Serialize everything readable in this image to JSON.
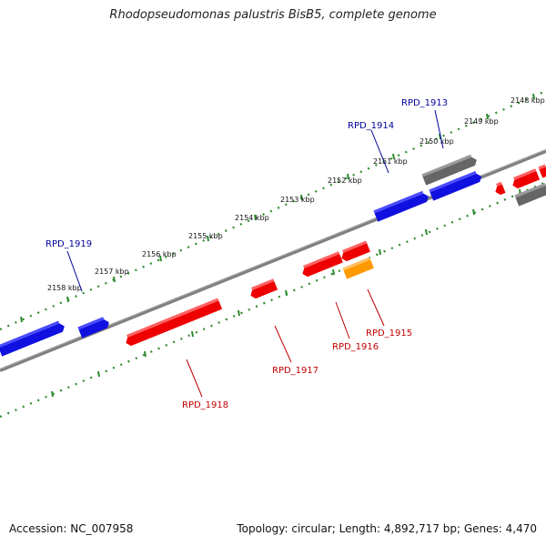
{
  "title": "Rhodopseudomonas palustris BisB5, complete genome",
  "footer": {
    "accession": "Accession: NC_007958",
    "summary": "Topology: circular; Length: 4,892,717 bp; Genes: 4,470"
  },
  "colors": {
    "backbone": "#7f7f7f",
    "tick_green": "#2e8b2e",
    "forward_gene": "#1010e0",
    "reverse_gene": "#ee0000",
    "grey_gene": "#666666",
    "orange_gene": "#ff9900",
    "label_forward": "#00009a",
    "label_reverse": "#c00000"
  },
  "scale_labels": [
    "2148 kbp",
    "2149 kbp",
    "2150 kbp",
    "2151 kbp",
    "2152 kbp",
    "2153 kbp",
    "2154 kbp",
    "2155 kbp",
    "2156 kbp",
    "2157 kbp",
    "2158 kbp"
  ],
  "gene_labels": {
    "forward": [
      "RPD_1913",
      "RPD_1914",
      "RPD_1919"
    ],
    "reverse": [
      "RPD_1915",
      "RPD_1916",
      "RPD_1917",
      "RPD_1918"
    ]
  }
}
